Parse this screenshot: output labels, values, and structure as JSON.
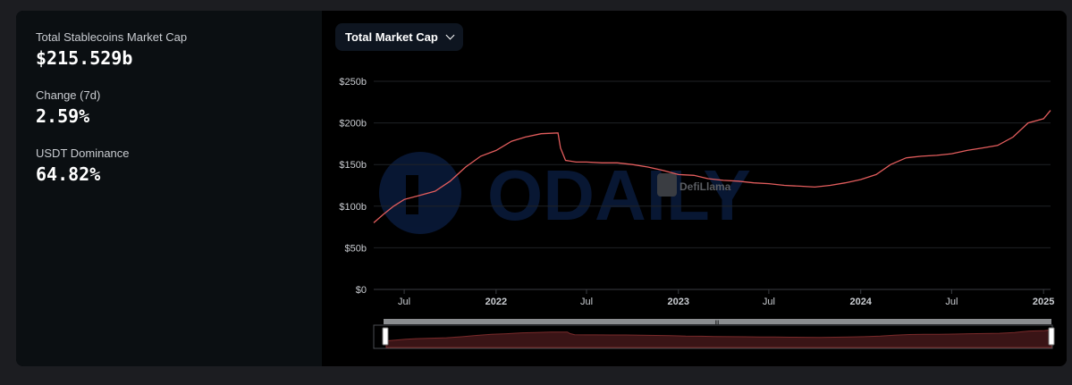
{
  "stats": {
    "market_cap_label": "Total Stablecoins Market Cap",
    "market_cap_value": "$215.529b",
    "change_label": "Change (7d)",
    "change_value": "2.59%",
    "dominance_label": "USDT Dominance",
    "dominance_value": "64.82%"
  },
  "chart_select": {
    "label": "Total Market Cap"
  },
  "watermarks": {
    "brand": "ODAILY",
    "source": "DefiLlama"
  },
  "colors": {
    "line": "#e35d5d",
    "grid": "#1f2226",
    "axis_text": "#c9ccd1",
    "card_bg": "#0b0f12"
  },
  "chart_data": {
    "type": "line",
    "title": "Total Market Cap",
    "x_ticks": [
      {
        "label": "Jul",
        "date": "2021-07-01",
        "major": false
      },
      {
        "label": "2022",
        "date": "2022-01-01",
        "major": true
      },
      {
        "label": "Jul",
        "date": "2022-07-01",
        "major": false
      },
      {
        "label": "2023",
        "date": "2023-01-01",
        "major": true
      },
      {
        "label": "Jul",
        "date": "2023-07-01",
        "major": false
      },
      {
        "label": "2024",
        "date": "2024-01-01",
        "major": true
      },
      {
        "label": "Jul",
        "date": "2024-07-01",
        "major": false
      },
      {
        "label": "2025",
        "date": "2025-01-01",
        "major": true
      }
    ],
    "y_ticks": [
      {
        "label": "$0",
        "value": 0
      },
      {
        "label": "$50b",
        "value": 50
      },
      {
        "label": "$100b",
        "value": 100
      },
      {
        "label": "$150b",
        "value": 150
      },
      {
        "label": "$200b",
        "value": 200
      },
      {
        "label": "$250b",
        "value": 250
      }
    ],
    "ylim": [
      0,
      250
    ],
    "xlim": [
      "2021-05-01",
      "2025-01-15"
    ],
    "series": [
      {
        "points": [
          [
            "2021-05-01",
            80
          ],
          [
            "2021-05-20",
            90
          ],
          [
            "2021-06-10",
            100
          ],
          [
            "2021-07-01",
            108
          ],
          [
            "2021-08-01",
            113
          ],
          [
            "2021-09-01",
            118
          ],
          [
            "2021-10-01",
            130
          ],
          [
            "2021-11-01",
            147
          ],
          [
            "2021-12-01",
            160
          ],
          [
            "2022-01-01",
            167
          ],
          [
            "2022-02-01",
            178
          ],
          [
            "2022-03-01",
            183
          ],
          [
            "2022-04-01",
            187
          ],
          [
            "2022-05-05",
            188
          ],
          [
            "2022-05-10",
            170
          ],
          [
            "2022-05-20",
            155
          ],
          [
            "2022-06-10",
            153
          ],
          [
            "2022-07-01",
            153
          ],
          [
            "2022-08-01",
            152
          ],
          [
            "2022-09-01",
            152
          ],
          [
            "2022-10-01",
            150
          ],
          [
            "2022-11-01",
            147
          ],
          [
            "2022-12-01",
            143
          ],
          [
            "2023-01-01",
            138
          ],
          [
            "2023-02-01",
            137
          ],
          [
            "2023-03-01",
            133
          ],
          [
            "2023-04-01",
            131
          ],
          [
            "2023-05-01",
            130
          ],
          [
            "2023-06-01",
            128
          ],
          [
            "2023-07-01",
            127
          ],
          [
            "2023-08-01",
            125
          ],
          [
            "2023-09-01",
            124
          ],
          [
            "2023-10-01",
            123
          ],
          [
            "2023-11-01",
            125
          ],
          [
            "2023-12-01",
            128
          ],
          [
            "2024-01-01",
            132
          ],
          [
            "2024-02-01",
            138
          ],
          [
            "2024-03-01",
            150
          ],
          [
            "2024-04-01",
            158
          ],
          [
            "2024-05-01",
            160
          ],
          [
            "2024-06-01",
            161
          ],
          [
            "2024-07-01",
            163
          ],
          [
            "2024-08-01",
            167
          ],
          [
            "2024-09-01",
            170
          ],
          [
            "2024-10-01",
            173
          ],
          [
            "2024-11-01",
            183
          ],
          [
            "2024-12-01",
            200
          ],
          [
            "2025-01-01",
            205
          ],
          [
            "2025-01-15",
            215
          ]
        ]
      }
    ]
  }
}
